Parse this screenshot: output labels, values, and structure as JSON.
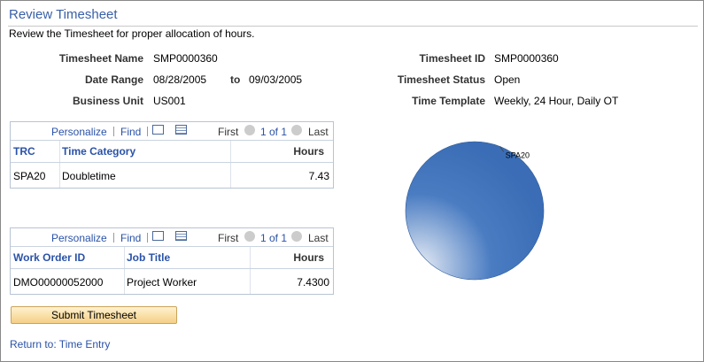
{
  "header": {
    "title": "Review Timesheet",
    "subtitle": "Review the Timesheet for proper allocation of hours."
  },
  "fields_left": [
    {
      "label": "Timesheet Name",
      "value": "SMP0000360"
    },
    {
      "label": "Date Range",
      "value": "08/28/2005",
      "to": "to",
      "value2": "09/03/2005"
    },
    {
      "label": "Business Unit",
      "value": "US001"
    }
  ],
  "fields_right": [
    {
      "label": "Timesheet ID",
      "value": "SMP0000360"
    },
    {
      "label": "Timesheet Status",
      "value": "Open"
    },
    {
      "label": "Time Template",
      "value": "Weekly, 24 Hour, Daily OT"
    }
  ],
  "grids": [
    {
      "toolbar": {
        "personalize": "Personalize",
        "find": "Find",
        "first": "First",
        "count": "1 of 1",
        "last": "Last"
      },
      "headers": [
        "TRC",
        "Time Category",
        "Hours"
      ],
      "rows": [
        [
          "SPA20",
          "Doubletime",
          "7.43"
        ]
      ]
    },
    {
      "toolbar": {
        "personalize": "Personalize",
        "find": "Find",
        "first": "First",
        "count": "1 of 1",
        "last": "Last"
      },
      "headers": [
        "Work Order ID",
        "Job Title",
        "Hours"
      ],
      "rows": [
        [
          "DMO00000052000",
          "Project Worker",
          "7.4300"
        ]
      ]
    }
  ],
  "pie": {
    "type": "pie",
    "categories": [
      "SPA20"
    ],
    "values": [
      7.43
    ]
  },
  "button": "Submit Timesheet",
  "link": "Return to: Time Entry"
}
